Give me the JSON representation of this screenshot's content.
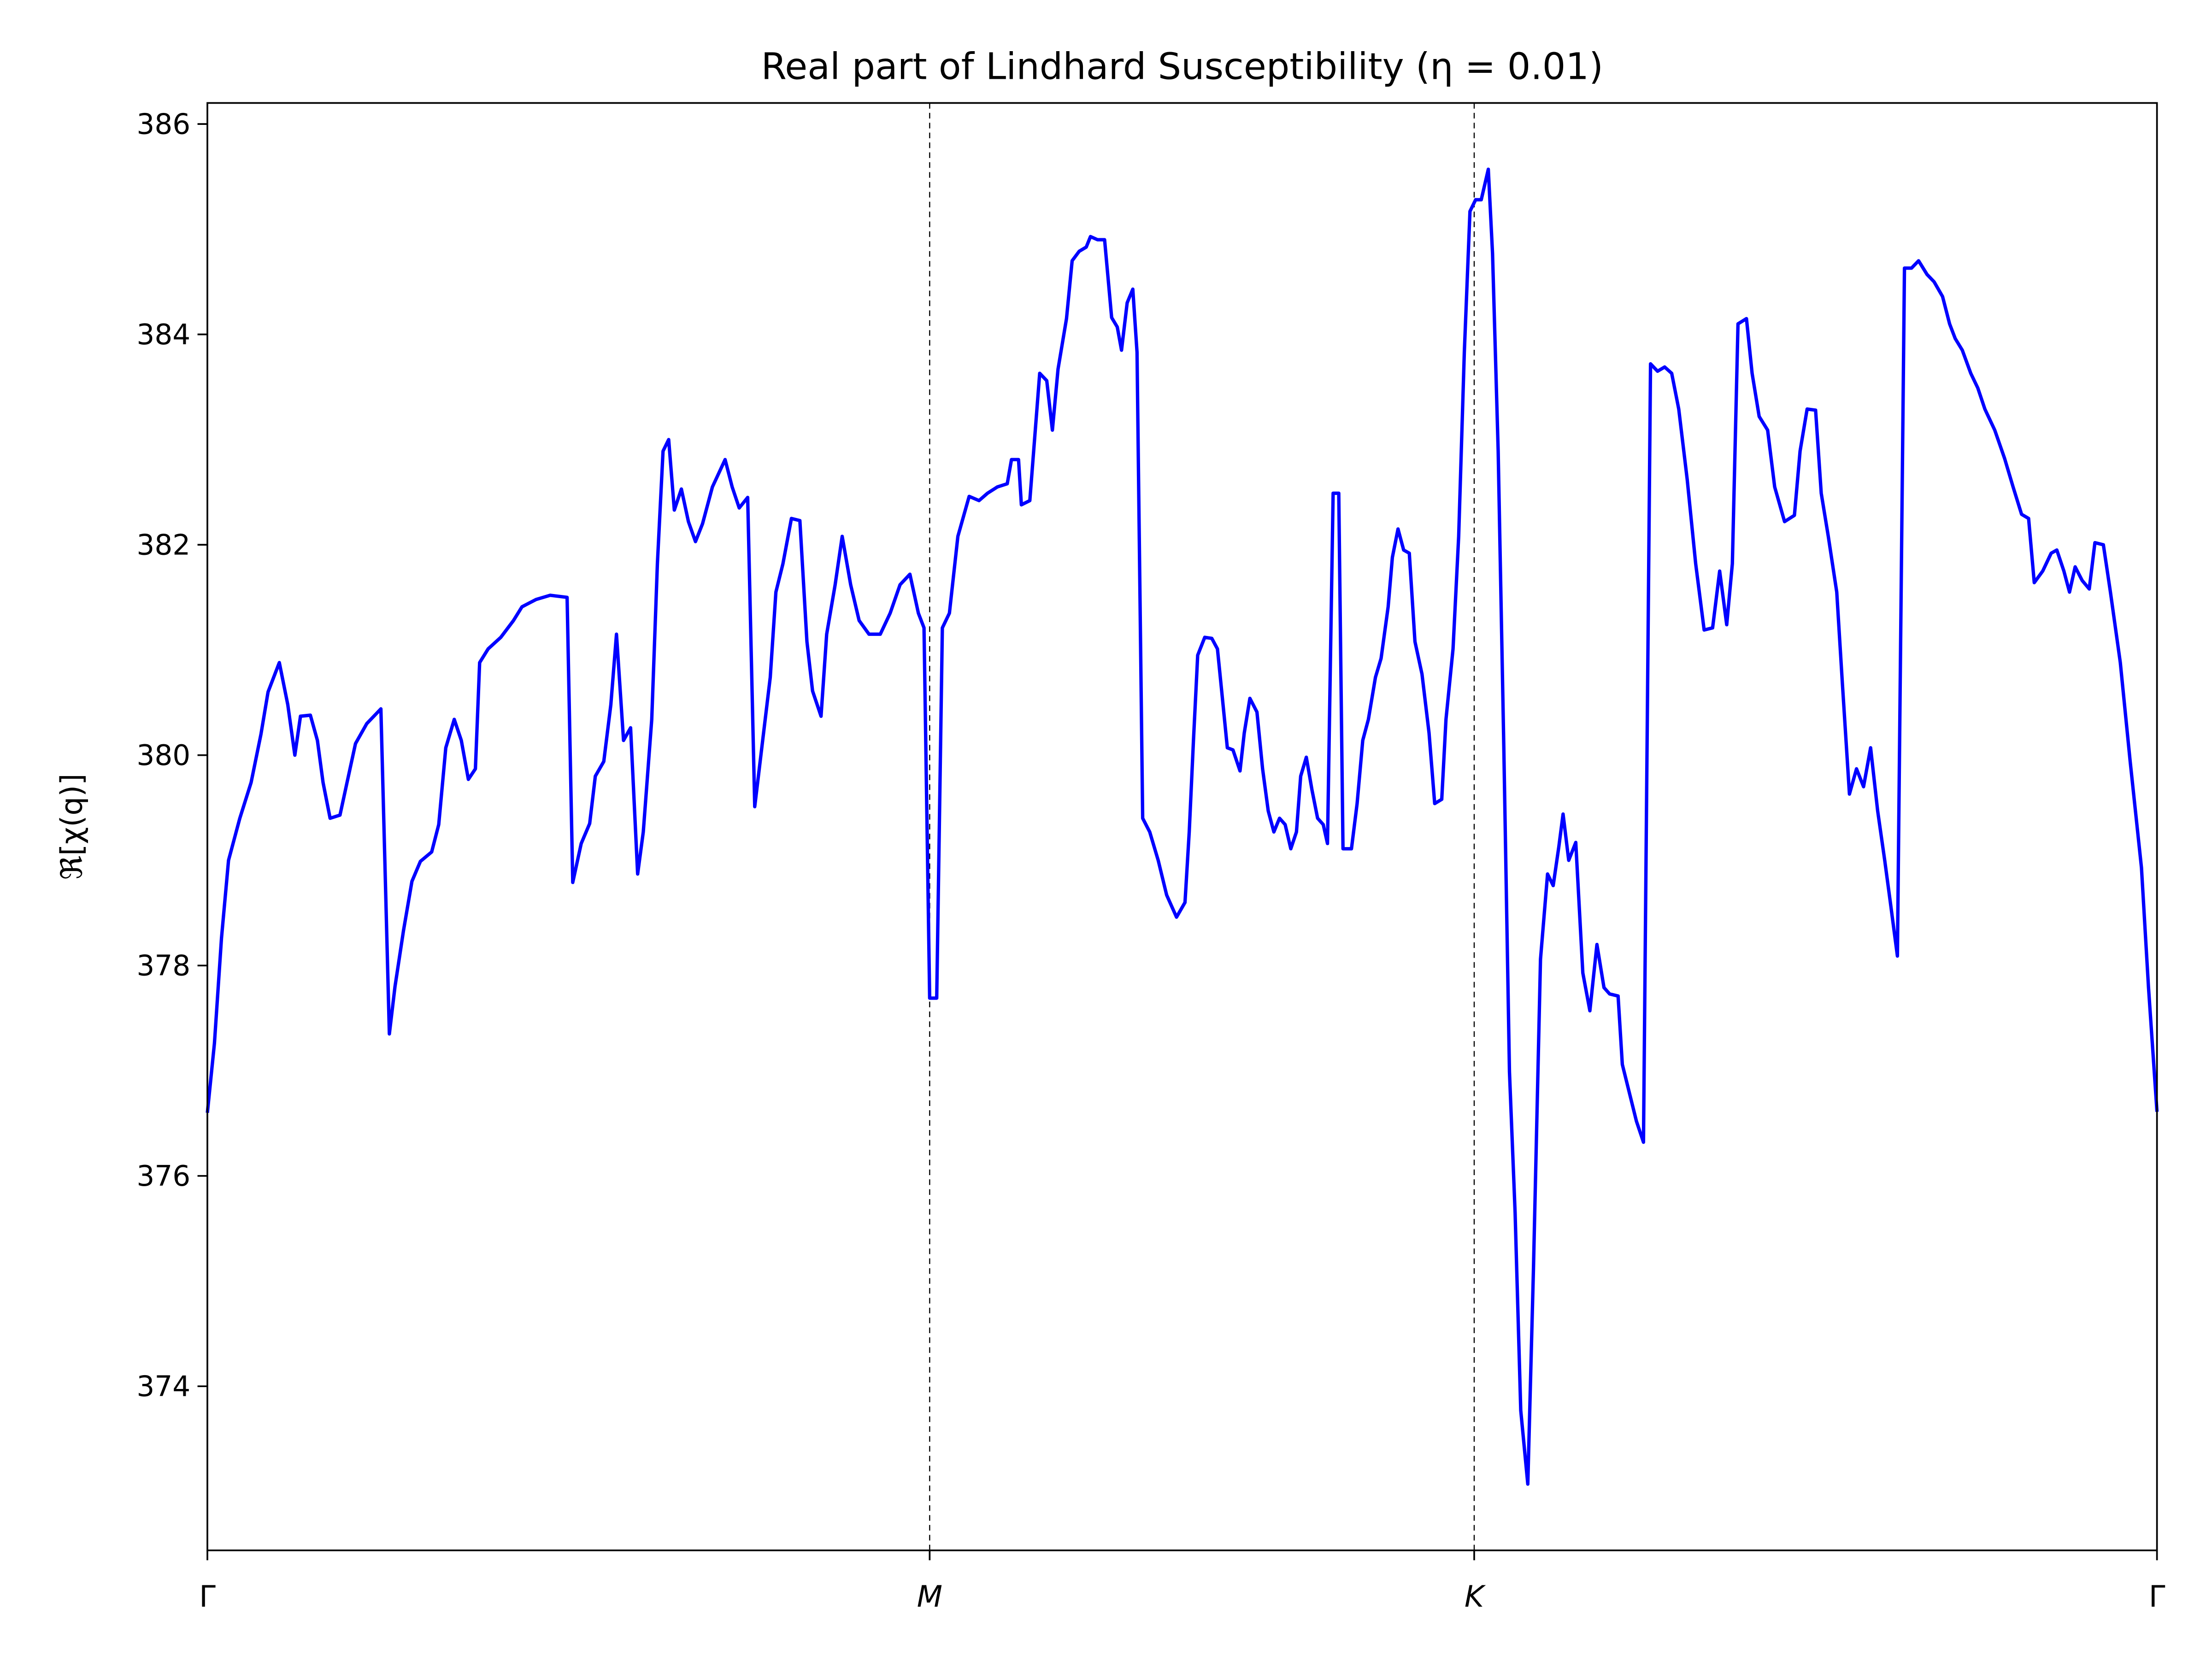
{
  "chart_data": {
    "type": "line",
    "title": "Real part of Lindhard Susceptibility (η = 0.01)",
    "ylabel": "ℜ[χ(q)]",
    "xlim": [
      0,
      1382
    ],
    "ylim": [
      372.44,
      386.2
    ],
    "xticks": [
      {
        "value": 0,
        "label": "Γ"
      },
      {
        "value": 512,
        "label": "M"
      },
      {
        "value": 898,
        "label": "K"
      },
      {
        "value": 1382,
        "label": "Γ"
      }
    ],
    "yticks": [
      374,
      376,
      378,
      380,
      382,
      384,
      386
    ],
    "vlines": [
      512,
      898
    ],
    "grid": false,
    "series": [
      {
        "color": "#0000ff",
        "x": [
          0,
          5,
          10,
          15,
          23,
          31,
          38,
          43,
          51,
          57,
          62,
          66,
          73,
          78,
          82,
          87,
          94,
          99,
          105,
          113,
          123,
          129,
          133,
          139,
          145,
          151,
          159,
          164,
          169,
          175,
          180,
          185,
          190,
          193,
          199,
          208,
          217,
          223,
          233,
          243,
          255,
          259,
          265,
          271,
          275,
          281,
          286,
          290,
          295,
          300,
          305,
          309,
          315,
          319,
          323,
          327,
          331,
          336,
          341,
          346,
          351,
          358,
          367,
          372,
          377,
          383,
          388,
          393,
          399,
          403,
          408,
          414,
          420,
          425,
          429,
          435,
          439,
          445,
          450,
          456,
          462,
          469,
          477,
          484,
          491,
          498,
          504,
          508,
          512,
          517,
          521,
          526,
          532,
          540,
          547,
          553,
          560,
          567,
          570,
          575,
          577,
          583,
          590,
          595,
          599,
          603,
          609,
          613,
          618,
          623,
          626,
          631,
          636,
          641,
          645,
          648,
          652,
          656,
          659,
          663,
          668,
          674,
          680,
          687,
          693,
          696,
          699,
          702,
          707,
          712,
          716,
          719,
          723,
          727,
          732,
          735,
          739,
          744,
          748,
          752,
          756,
          760,
          764,
          768,
          772,
          775,
          779,
          783,
          787,
          791,
          794,
          798,
          802,
          805,
          811,
          815,
          819,
          823,
          828,
          832,
          837,
          840,
          844,
          848,
          852,
          856,
          861,
          866,
          870,
          875,
          878,
          883,
          887,
          891,
          895,
          899,
          903,
          908,
          911,
          915,
          919,
          923,
          927,
          931,
          936,
          940,
          945,
          950,
          954,
          958,
          961,
          965,
          970,
          975,
          980,
          985,
          990,
          994,
          1000,
          1003,
          1008,
          1013,
          1018,
          1023,
          1028,
          1033,
          1038,
          1043,
          1049,
          1055,
          1061,
          1067,
          1072,
          1077,
          1081,
          1085,
          1091,
          1095,
          1100,
          1106,
          1111,
          1118,
          1125,
          1129,
          1134,
          1140,
          1144,
          1149,
          1155,
          1159,
          1164,
          1169,
          1174,
          1179,
          1184,
          1189,
          1193,
          1198,
          1203,
          1208,
          1213,
          1219,
          1224,
          1230,
          1235,
          1239,
          1244,
          1250,
          1255,
          1260,
          1267,
          1274,
          1280,
          1286,
          1291,
          1295,
          1301,
          1307,
          1311,
          1316,
          1320,
          1324,
          1329,
          1334,
          1338,
          1344,
          1349,
          1356,
          1363,
          1371,
          1376,
          1382
        ],
        "values": [
          376.6,
          377.26,
          378.26,
          379.0,
          379.4,
          379.74,
          380.2,
          380.6,
          380.88,
          380.48,
          380.0,
          380.37,
          380.38,
          380.14,
          379.74,
          379.4,
          379.43,
          379.74,
          380.11,
          380.3,
          380.44,
          377.35,
          377.8,
          378.33,
          378.8,
          378.99,
          379.08,
          379.34,
          380.07,
          380.34,
          380.14,
          379.77,
          379.87,
          380.88,
          381.01,
          381.12,
          381.28,
          381.41,
          381.48,
          381.52,
          381.5,
          378.79,
          379.16,
          379.35,
          379.8,
          379.94,
          380.48,
          381.15,
          380.14,
          380.26,
          378.87,
          379.27,
          380.34,
          381.82,
          382.89,
          383.0,
          382.33,
          382.53,
          382.22,
          382.03,
          382.2,
          382.55,
          382.81,
          382.55,
          382.35,
          382.45,
          379.51,
          380.07,
          380.74,
          381.55,
          381.82,
          382.25,
          382.23,
          381.08,
          380.61,
          380.37,
          381.15,
          381.62,
          382.08,
          381.62,
          381.28,
          381.15,
          381.15,
          381.35,
          381.62,
          381.72,
          381.35,
          381.21,
          377.69,
          377.69,
          381.21,
          381.35,
          382.08,
          382.46,
          382.42,
          382.49,
          382.55,
          382.58,
          382.81,
          382.81,
          382.38,
          382.42,
          383.63,
          383.56,
          383.09,
          383.67,
          384.15,
          384.7,
          384.79,
          384.83,
          384.93,
          384.9,
          384.9,
          384.16,
          384.07,
          383.85,
          384.3,
          384.43,
          383.83,
          379.4,
          379.27,
          379.0,
          378.67,
          378.46,
          378.6,
          379.27,
          380.14,
          380.95,
          381.12,
          381.11,
          381.01,
          380.61,
          380.07,
          380.05,
          379.85,
          380.21,
          380.54,
          380.41,
          379.87,
          379.47,
          379.27,
          379.4,
          379.34,
          379.11,
          379.27,
          379.8,
          379.98,
          379.67,
          379.4,
          379.34,
          379.16,
          382.49,
          382.49,
          379.11,
          379.11,
          379.54,
          380.14,
          380.34,
          380.74,
          380.92,
          381.41,
          381.88,
          382.15,
          381.95,
          381.92,
          381.08,
          380.77,
          380.21,
          379.54,
          379.58,
          380.34,
          381.01,
          382.08,
          383.83,
          385.17,
          385.28,
          385.28,
          385.57,
          384.77,
          382.89,
          380.07,
          376.99,
          375.65,
          373.77,
          373.07,
          375.11,
          378.06,
          378.87,
          378.76,
          379.13,
          379.44,
          379.0,
          379.17,
          377.93,
          377.57,
          378.2,
          377.79,
          377.73,
          377.71,
          377.06,
          376.79,
          376.52,
          376.32,
          383.72,
          383.65,
          383.69,
          383.63,
          383.29,
          382.62,
          381.82,
          381.19,
          381.21,
          381.75,
          381.24,
          381.82,
          384.1,
          384.15,
          383.63,
          383.22,
          383.09,
          382.55,
          382.22,
          382.28,
          382.89,
          383.29,
          383.28,
          382.49,
          382.08,
          381.55,
          380.68,
          379.63,
          379.87,
          379.7,
          380.07,
          379.47,
          379.0,
          378.6,
          378.09,
          384.63,
          384.63,
          384.7,
          384.57,
          384.5,
          384.36,
          384.1,
          383.96,
          383.85,
          383.63,
          383.49,
          383.29,
          383.09,
          382.82,
          382.55,
          382.29,
          382.25,
          381.64,
          381.75,
          381.92,
          381.95,
          381.75,
          381.55,
          381.79,
          381.66,
          381.58,
          382.02,
          382.0,
          381.55,
          380.88,
          379.94,
          378.93,
          377.79,
          376.61
        ]
      }
    ]
  }
}
